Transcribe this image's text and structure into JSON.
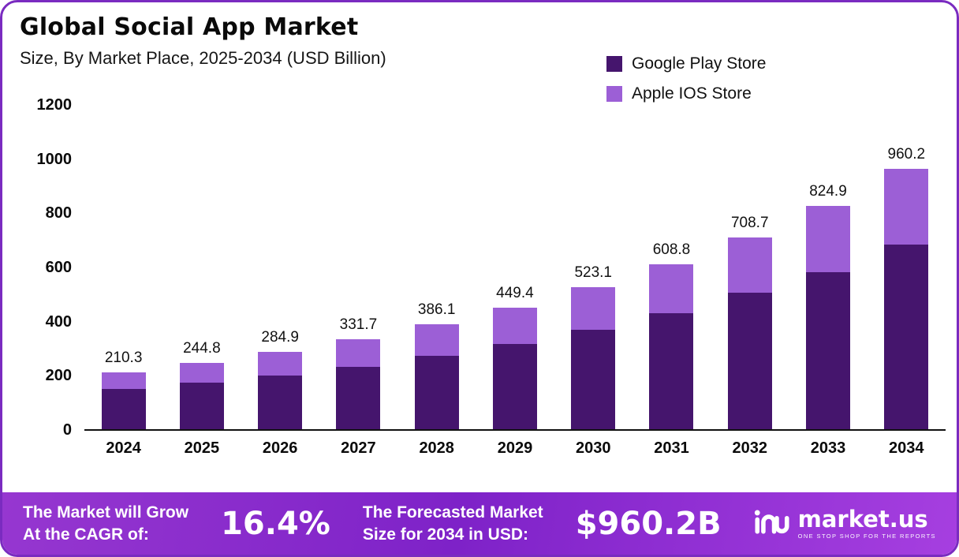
{
  "header": {
    "title": "Global Social App Market",
    "subtitle": "Size, By Market Place, 2025-2034 (USD Billion)"
  },
  "legend": [
    {
      "label": "Google Play Store",
      "color": "#45156D"
    },
    {
      "label": "Apple IOS Store",
      "color": "#9C5FD6"
    }
  ],
  "chart_data": {
    "type": "bar",
    "stacked": true,
    "title": "Global Social App Market Size, By Market Place, 2025-2034 (USD Billion)",
    "categories": [
      "2024",
      "2025",
      "2026",
      "2027",
      "2028",
      "2029",
      "2030",
      "2031",
      "2032",
      "2033",
      "2034"
    ],
    "series": [
      {
        "name": "Google Play Store",
        "color": "#45156D",
        "values": [
          149.8,
          172.5,
          199.5,
          231.5,
          269.5,
          314.0,
          366.0,
          429.0,
          503.0,
          581.0,
          681.0
        ]
      },
      {
        "name": "Apple IOS Store",
        "color": "#9C5FD6",
        "values": [
          60.5,
          72.3,
          85.4,
          100.2,
          116.6,
          135.4,
          157.1,
          179.8,
          205.7,
          243.9,
          279.2
        ]
      }
    ],
    "totals": [
      210.3,
      244.8,
      284.9,
      331.7,
      386.1,
      449.4,
      523.1,
      608.8,
      708.7,
      824.9,
      960.2
    ],
    "xlabel": "",
    "ylabel": "",
    "ylim": [
      0,
      1200
    ],
    "yticks": [
      0,
      200,
      400,
      600,
      800,
      1000,
      1200
    ],
    "grid": false,
    "legend_position": "top-right"
  },
  "footer": {
    "cagr_label_line1": "The Market will Grow",
    "cagr_label_line2": "At the CAGR of:",
    "cagr_value": "16.4%",
    "forecast_label_line1": "The Forecasted Market",
    "forecast_label_line2": "Size for 2034 in USD:",
    "forecast_value": "$960.2B",
    "brand": "market.us",
    "brand_tagline": "ONE STOP SHOP FOR THE REPORTS"
  }
}
